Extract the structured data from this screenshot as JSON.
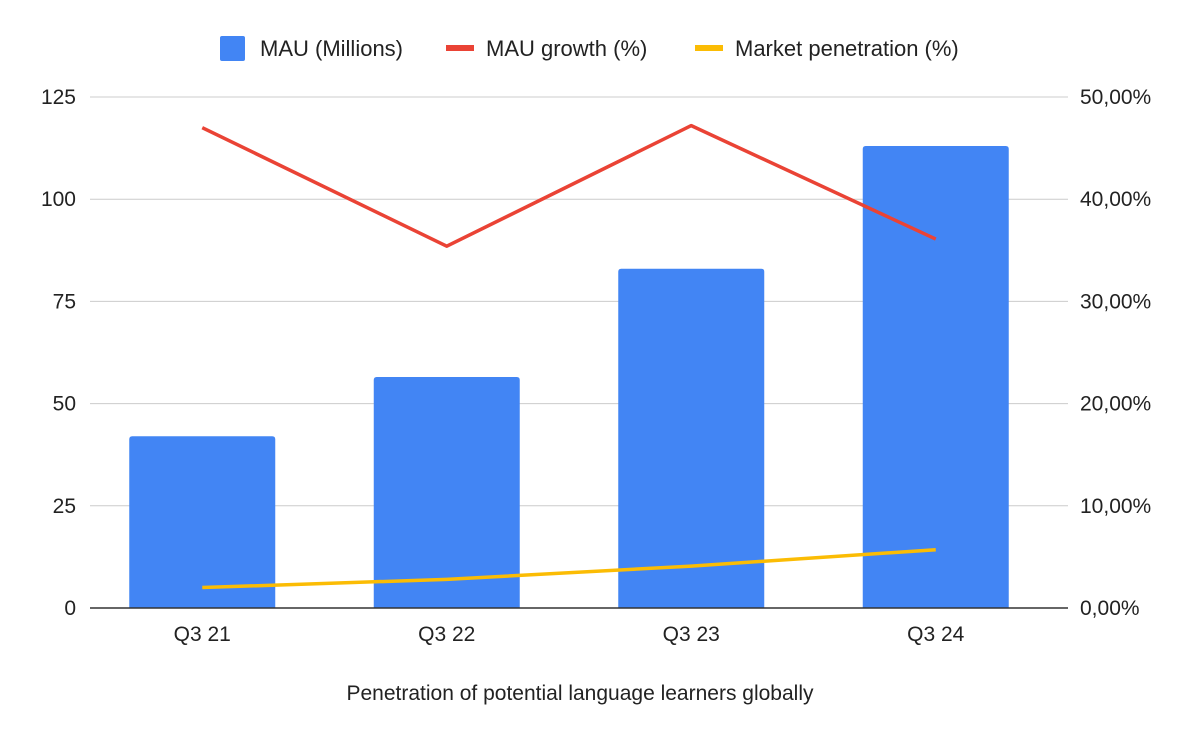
{
  "chart_data": {
    "type": "bar",
    "categories": [
      "Q3 21",
      "Q3 22",
      "Q3 23",
      "Q3 24"
    ],
    "series": [
      {
        "name": "MAU (Millions)",
        "kind": "bar",
        "axis": "left",
        "color": "#4285F4",
        "values": [
          42,
          56.5,
          83,
          113
        ]
      },
      {
        "name": "MAU growth (%)",
        "kind": "line",
        "axis": "right",
        "color": "#EA4335",
        "values": [
          47.0,
          35.4,
          47.2,
          36.1
        ]
      },
      {
        "name": "Market penetration (%)",
        "kind": "line",
        "axis": "right",
        "color": "#FBBC04",
        "values": [
          2.0,
          2.8,
          4.1,
          5.7
        ]
      }
    ],
    "xlabel": "Penetration of potential language learners globally",
    "y_left": {
      "ylim": [
        0,
        125
      ],
      "ticks": [
        0,
        25,
        50,
        75,
        100,
        125
      ],
      "tick_labels": [
        "0",
        "25",
        "50",
        "75",
        "100",
        "125"
      ]
    },
    "y_right": {
      "ylim": [
        0,
        50
      ],
      "ticks": [
        0,
        10,
        20,
        30,
        40,
        50
      ],
      "tick_labels": [
        "0,00%",
        "10,00%",
        "20,00%",
        "30,00%",
        "40,00%",
        "50,00%"
      ]
    },
    "grid": true,
    "legend_position": "top-center"
  }
}
